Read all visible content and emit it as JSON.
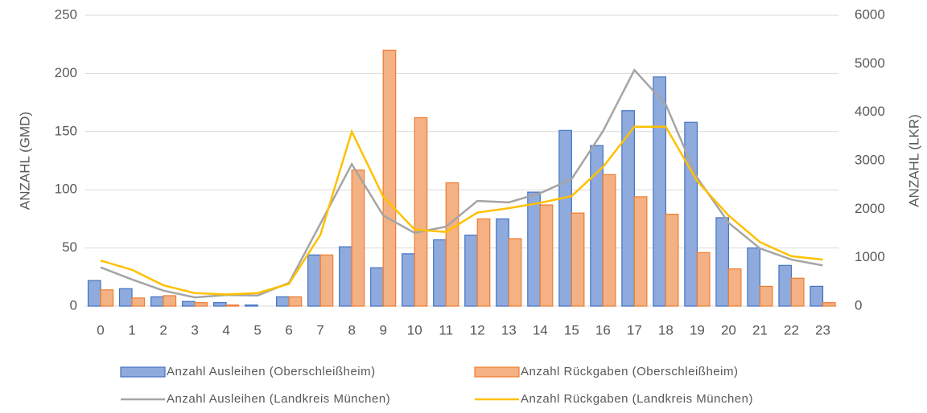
{
  "chart_data": {
    "type": "combo",
    "categories": [
      "0",
      "1",
      "2",
      "3",
      "4",
      "5",
      "6",
      "7",
      "8",
      "9",
      "10",
      "11",
      "12",
      "13",
      "14",
      "15",
      "16",
      "17",
      "18",
      "19",
      "20",
      "21",
      "22",
      "23"
    ],
    "ylabel": "ANZAHL (GMD)",
    "y2label": "ANZAHL (LKR)",
    "ylim": [
      0,
      250
    ],
    "yticks": [
      0,
      50,
      100,
      150,
      200,
      250
    ],
    "y2lim": [
      0,
      6000
    ],
    "y2ticks": [
      0,
      1000,
      2000,
      3000,
      4000,
      5000,
      6000
    ],
    "grid": true,
    "legend": "bottom",
    "series": [
      {
        "name": "Anzahl Ausleihen (Oberschleißheim)",
        "type": "bar",
        "color": "#8faadc",
        "edge": "#4472c4",
        "values": [
          22,
          15,
          8,
          4,
          3,
          1,
          8,
          44,
          51,
          33,
          45,
          57,
          61,
          75,
          98,
          151,
          138,
          168,
          197,
          158,
          76,
          50,
          35,
          17
        ]
      },
      {
        "name": "Anzahl Rückgaben (Oberschleißheim)",
        "type": "bar",
        "color": "#f4b183",
        "edge": "#ed7d31",
        "values": [
          14,
          7,
          9,
          3,
          1,
          0,
          8,
          44,
          117,
          220,
          162,
          106,
          75,
          58,
          87,
          80,
          113,
          94,
          79,
          46,
          32,
          17,
          24,
          3
        ]
      },
      {
        "name": "Anzahl Ausleihen (Landkreis München)",
        "type": "line",
        "axis": "y2",
        "color": "#a5a5a5",
        "values": [
          800,
          550,
          320,
          180,
          230,
          220,
          480,
          1700,
          2930,
          1870,
          1510,
          1640,
          2170,
          2140,
          2330,
          2620,
          3610,
          4870,
          4160,
          2650,
          1720,
          1190,
          960,
          840
        ]
      },
      {
        "name": "Anzahl Rückgaben (Landkreis München)",
        "type": "line",
        "axis": "y2",
        "color": "#ffc000",
        "values": [
          940,
          750,
          430,
          270,
          240,
          270,
          460,
          1470,
          3600,
          2260,
          1580,
          1530,
          1930,
          2020,
          2130,
          2270,
          2870,
          3700,
          3700,
          2580,
          1870,
          1320,
          1030,
          960
        ]
      }
    ]
  }
}
